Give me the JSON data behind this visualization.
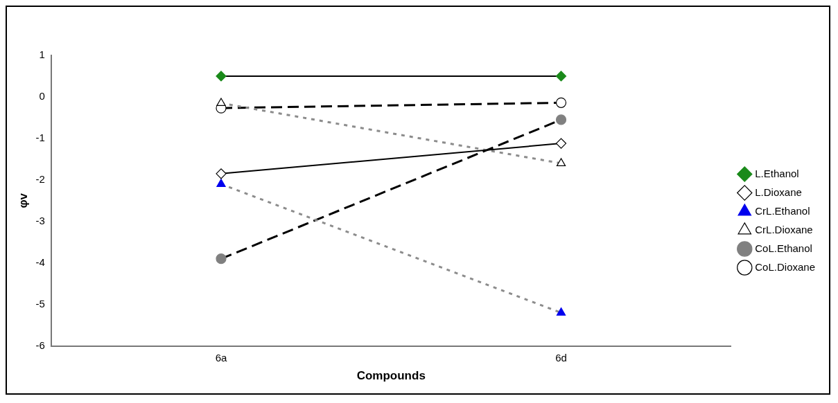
{
  "chart_data": {
    "type": "line",
    "xlabel": "Compounds",
    "ylabel": "φv",
    "categories": [
      "6a",
      "6d"
    ],
    "ylim": [
      -6,
      1
    ],
    "yticks": [
      -6,
      -5,
      -4,
      -3,
      -2,
      -1,
      0,
      1
    ],
    "grid": false,
    "legend": "right",
    "series": [
      {
        "name": "L.Ethanol",
        "color": "#000000",
        "colors": [
          "#1a8a1a",
          "#1a8a1a"
        ],
        "marker": "diamond",
        "line_style": "solid",
        "values": [
          0.5,
          0.5
        ]
      },
      {
        "name": "L.Dioxane",
        "color": "#000000",
        "colors": [
          "#ffffff",
          "#ffffff"
        ],
        "marker": "diamond",
        "line_style": "solid",
        "values": [
          -1.85,
          -1.12
        ]
      },
      {
        "name": "CrL.Ethanol",
        "color": "#8c8c8c",
        "colors": [
          "#0000ee",
          "#0000ee"
        ],
        "marker": "triangle",
        "line_style": "dotted",
        "values": [
          -2.1,
          -5.2
        ]
      },
      {
        "name": "CrL.Dioxane",
        "color": "#8c8c8c",
        "colors": [
          "#ffffff",
          "#ffffff"
        ],
        "marker": "triangle",
        "line_style": "dotted",
        "values": [
          -0.15,
          -1.6
        ]
      },
      {
        "name": "CoL.Ethanol",
        "color": "#000000",
        "colors": [
          "#808080",
          "#808080"
        ],
        "marker": "circle",
        "line_style": "dashed",
        "values": [
          -3.9,
          -0.55
        ]
      },
      {
        "name": "CoL.Dioxane",
        "color": "#000000",
        "colors": [
          "#ffffff",
          "#ffffff"
        ],
        "marker": "circle",
        "line_style": "dashed",
        "values": [
          -0.27,
          -0.14
        ]
      }
    ]
  }
}
